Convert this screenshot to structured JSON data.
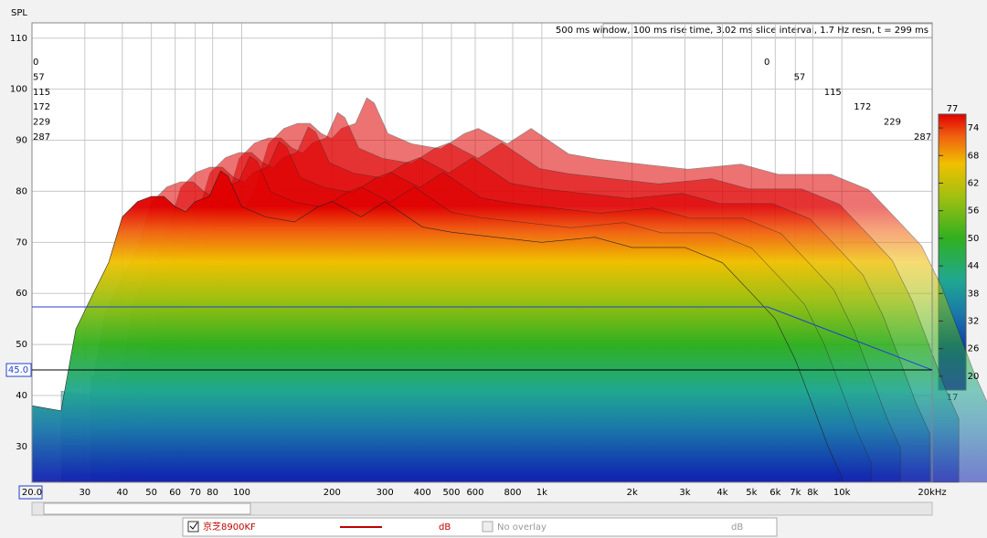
{
  "chart_data": {
    "type": "waterfall",
    "y_label": "SPL",
    "annotation": "500 ms window, 100 ms rise time, 3.02 ms slice interval, 1.7 Hz resn, t = 299 ms",
    "log_x": true,
    "grid": true,
    "xlim": [
      20,
      20000
    ],
    "ylim": [
      23,
      113
    ],
    "xticks": [
      {
        "value": 20,
        "label": "20.0"
      },
      30,
      40,
      50,
      60,
      70,
      80,
      100,
      200,
      300,
      400,
      500,
      600,
      800,
      {
        "value": 1000,
        "label": "1k"
      },
      {
        "value": 2000,
        "label": "2k"
      },
      {
        "value": 3000,
        "label": "3k"
      },
      {
        "value": 4000,
        "label": "4k"
      },
      {
        "value": 5000,
        "label": "5k"
      },
      {
        "value": 6000,
        "label": "6k"
      },
      {
        "value": 7000,
        "label": "7k"
      },
      {
        "value": 8000,
        "label": "8k"
      },
      {
        "value": 10000,
        "label": "10k"
      },
      {
        "value": 20000,
        "label": "20kHz"
      }
    ],
    "yticks": [
      30,
      40,
      50,
      60,
      70,
      80,
      90,
      100,
      110
    ],
    "cursor": {
      "value": 45,
      "label": "45.0"
    },
    "slices": [
      0,
      57,
      115,
      172,
      229,
      287
    ],
    "clim": [
      17,
      77
    ],
    "cticks": [
      74,
      68,
      62,
      56,
      50,
      44,
      38,
      32,
      26,
      20
    ],
    "series": [
      {
        "name": "京芝8900KF",
        "color": "#c00000",
        "x": [
          20,
          25,
          28,
          32,
          36,
          40,
          45,
          50,
          55,
          60,
          65,
          70,
          78,
          85,
          90,
          100,
          120,
          150,
          180,
          200,
          250,
          300,
          400,
          500,
          700,
          1000,
          1500,
          2000,
          3000,
          4000,
          5000,
          6000,
          7000,
          8000,
          9000,
          10000
        ],
        "values": [
          38,
          37,
          53,
          60,
          66,
          75,
          78,
          79,
          79,
          77,
          76,
          78,
          79,
          84,
          83,
          77,
          75,
          74,
          77,
          78,
          75,
          78,
          73,
          72,
          71,
          70,
          71,
          69,
          69,
          66,
          60,
          55,
          47,
          38,
          30,
          24
        ]
      }
    ],
    "units": "dB",
    "overlay_label": "No overlay"
  }
}
